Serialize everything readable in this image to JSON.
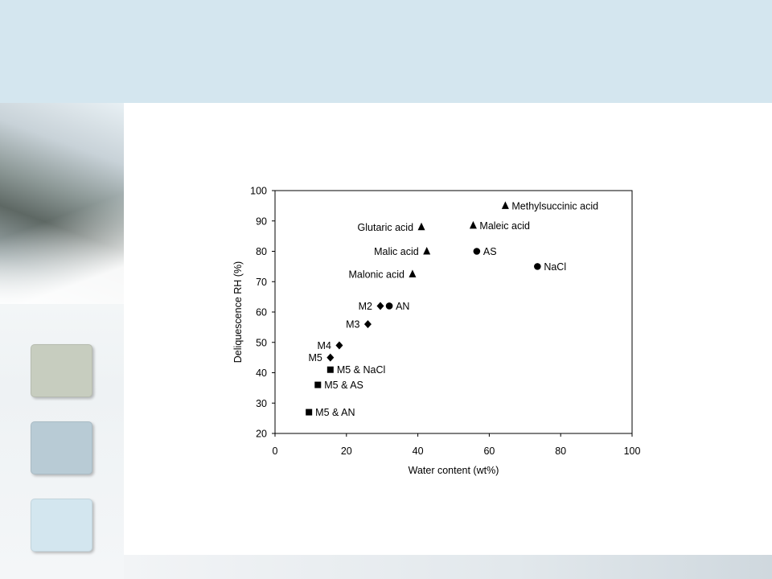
{
  "theme": {
    "header_color": "#d4e6ef",
    "swatches": [
      "#c7cdbf",
      "#b8cbd5",
      "#d3e6ef"
    ]
  },
  "chart_data": {
    "type": "scatter",
    "title": "",
    "xlabel": "Water content (wt%)",
    "ylabel": "Deliquescence RH (%)",
    "xlim": [
      0,
      100
    ],
    "ylim": [
      20,
      100
    ],
    "x_ticks": [
      0,
      20,
      40,
      60,
      80,
      100
    ],
    "y_ticks": [
      20,
      30,
      40,
      50,
      60,
      70,
      80,
      90,
      100
    ],
    "grid": false,
    "legend": "none",
    "points": [
      {
        "label": "Methylsuccinic acid",
        "x": 64.5,
        "y": 95,
        "marker": "triangle",
        "label_side": "right"
      },
      {
        "label": "Maleic acid",
        "x": 55.5,
        "y": 88.5,
        "marker": "triangle",
        "label_side": "right"
      },
      {
        "label": "Glutaric acid",
        "x": 41,
        "y": 88,
        "marker": "triangle",
        "label_side": "left"
      },
      {
        "label": "Malic acid",
        "x": 42.5,
        "y": 80,
        "marker": "triangle",
        "label_side": "left"
      },
      {
        "label": "AS",
        "x": 56.5,
        "y": 80,
        "marker": "circle",
        "label_side": "right"
      },
      {
        "label": "NaCl",
        "x": 73.5,
        "y": 75,
        "marker": "circle",
        "label_side": "right"
      },
      {
        "label": "Malonic acid",
        "x": 38.5,
        "y": 72.5,
        "marker": "triangle",
        "label_side": "left"
      },
      {
        "label": "M2",
        "x": 29.5,
        "y": 62,
        "marker": "diamond",
        "label_side": "left"
      },
      {
        "label": "AN",
        "x": 32,
        "y": 62,
        "marker": "circle",
        "label_side": "right"
      },
      {
        "label": "M3",
        "x": 26,
        "y": 56,
        "marker": "diamond",
        "label_side": "left"
      },
      {
        "label": "M4",
        "x": 18,
        "y": 49,
        "marker": "diamond",
        "label_side": "left"
      },
      {
        "label": "M5",
        "x": 15.5,
        "y": 45,
        "marker": "diamond",
        "label_side": "left"
      },
      {
        "label": "M5 & NaCl",
        "x": 15.5,
        "y": 41,
        "marker": "square",
        "label_side": "right"
      },
      {
        "label": "M5 & AS",
        "x": 12,
        "y": 36,
        "marker": "square",
        "label_side": "right"
      },
      {
        "label": "M5 & AN",
        "x": 9.5,
        "y": 27,
        "marker": "square",
        "label_side": "right"
      }
    ]
  }
}
